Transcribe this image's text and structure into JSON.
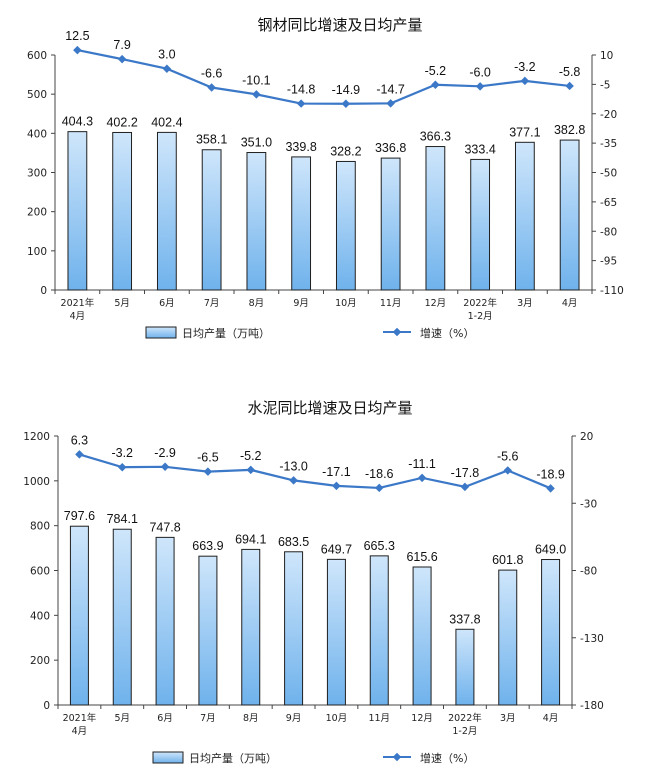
{
  "colors": {
    "bar_fill_top": "#cfe6fb",
    "bar_fill_bottom": "#6fb2ec",
    "bar_stroke": "#1f1f1f",
    "line": "#3b78c7",
    "axis": "#444444"
  },
  "chart_data": [
    {
      "type": "bar",
      "title": "钢材同比增速及日均产量",
      "categories": [
        [
          "2021年",
          "4月"
        ],
        [
          "5月"
        ],
        [
          "6月"
        ],
        [
          "7月"
        ],
        [
          "8月"
        ],
        [
          "9月"
        ],
        [
          "10月"
        ],
        [
          "11月"
        ],
        [
          "12月"
        ],
        [
          "2022年",
          "1-2月"
        ],
        [
          "3月"
        ],
        [
          "4月"
        ]
      ],
      "series": [
        {
          "name": "日均产量（万吨）",
          "type": "bar",
          "axis": "left",
          "values": [
            404.3,
            402.2,
            402.4,
            358.1,
            351.0,
            339.8,
            328.2,
            336.8,
            366.3,
            333.4,
            377.1,
            382.8
          ],
          "labels": [
            "404.3",
            "402.2",
            "402.4",
            "358.1",
            "351.0",
            "339.8",
            "328.2",
            "336.8",
            "366.3",
            "333.4",
            "377.1",
            "382.8"
          ]
        },
        {
          "name": "增速（%）",
          "type": "line",
          "axis": "right",
          "values": [
            12.5,
            7.9,
            3.0,
            -6.6,
            -10.1,
            -14.8,
            -14.9,
            -14.7,
            -5.2,
            -6.0,
            -3.2,
            -5.8
          ],
          "labels": [
            "12.5",
            "7.9",
            "3.0",
            "-6.6",
            "-10.1",
            "-14.8",
            "-14.9",
            "-14.7",
            "-5.2",
            "-6.0",
            "-3.2",
            "-5.8"
          ]
        }
      ],
      "left_axis": {
        "min": 0,
        "max": 600,
        "ticks": [
          0,
          100,
          200,
          300,
          400,
          500,
          600
        ]
      },
      "right_axis": {
        "min": -110,
        "max": 10,
        "ticks": [
          10,
          -5,
          -20,
          -35,
          -50,
          -65,
          -80,
          -95,
          -110
        ]
      },
      "legend": {
        "placement": "bottom",
        "bar_label": "日均产量（万吨）",
        "line_label": "增速（%）"
      }
    },
    {
      "type": "bar",
      "title": "水泥同比增速及日均产量",
      "categories": [
        [
          "2021年",
          "4月"
        ],
        [
          "5月"
        ],
        [
          "6月"
        ],
        [
          "7月"
        ],
        [
          "8月"
        ],
        [
          "9月"
        ],
        [
          "10月"
        ],
        [
          "11月"
        ],
        [
          "12月"
        ],
        [
          "2022年",
          "1-2月"
        ],
        [
          "3月"
        ],
        [
          "4月"
        ]
      ],
      "series": [
        {
          "name": "日均产量（万吨）",
          "type": "bar",
          "axis": "left",
          "values": [
            797.6,
            784.1,
            747.8,
            663.9,
            694.1,
            683.5,
            649.7,
            665.3,
            615.6,
            337.8,
            601.8,
            649.0
          ],
          "labels": [
            "797.6",
            "784.1",
            "747.8",
            "663.9",
            "694.1",
            "683.5",
            "649.7",
            "665.3",
            "615.6",
            "337.8",
            "601.8",
            "649.0"
          ]
        },
        {
          "name": "增速（%）",
          "type": "line",
          "axis": "right",
          "values": [
            6.3,
            -3.2,
            -2.9,
            -6.5,
            -5.2,
            -13.0,
            -17.1,
            -18.6,
            -11.1,
            -17.8,
            -5.6,
            -18.9
          ],
          "labels": [
            "6.3",
            "-3.2",
            "-2.9",
            "-6.5",
            "-5.2",
            "-13.0",
            "-17.1",
            "-18.6",
            "-11.1",
            "-17.8",
            "-5.6",
            "-18.9"
          ]
        }
      ],
      "left_axis": {
        "min": 0,
        "max": 1200,
        "ticks": [
          0,
          200,
          400,
          600,
          800,
          1000,
          1200
        ]
      },
      "right_axis": {
        "min": -180,
        "max": 20,
        "ticks": [
          20,
          -30,
          -80,
          -130,
          -180
        ]
      },
      "legend": {
        "placement": "bottom",
        "bar_label": "日均产量（万吨）",
        "line_label": "增速（%）"
      }
    }
  ]
}
